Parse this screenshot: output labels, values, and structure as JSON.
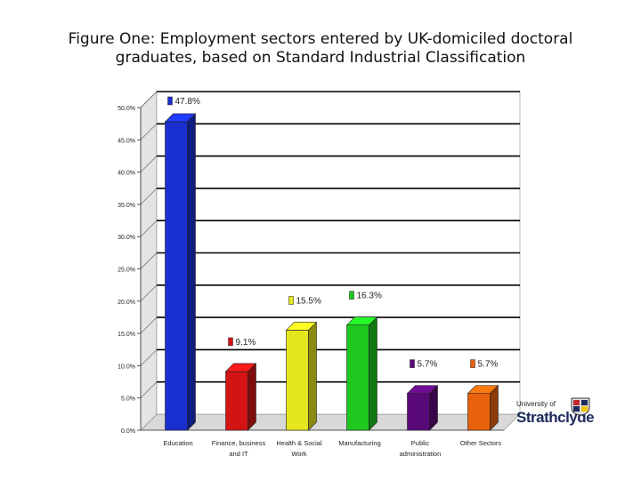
{
  "title": {
    "line1": "Figure One: Employment sectors entered by UK-domiciled doctoral",
    "line2": "graduates, based on Standard Industrial Classification"
  },
  "chart_data": {
    "type": "bar",
    "title": "Figure One: Employment sectors entered by UK-domiciled doctoral graduates, based on Standard Industrial Classification",
    "categories": [
      [
        "Education"
      ],
      [
        "Finance, business",
        "and IT"
      ],
      [
        "Health & Social",
        "Work"
      ],
      [
        "Manufacturing"
      ],
      [
        "Public",
        "administration"
      ],
      [
        "Other Sectors"
      ]
    ],
    "values": [
      47.8,
      9.1,
      15.5,
      16.3,
      5.7,
      5.7
    ],
    "data_labels": [
      "47.8%",
      "9.1%",
      "15.5%",
      "16.3%",
      "5.7%",
      "5.7%"
    ],
    "colors": [
      "#1a2fd0",
      "#d41414",
      "#e6e61e",
      "#1ec81e",
      "#5a0a78",
      "#e8620c"
    ],
    "ylim": [
      0,
      50
    ],
    "yticks": [
      "0.0%",
      "5.0%",
      "10.0%",
      "15.0%",
      "20.0%",
      "25.0%",
      "30.0%",
      "35.0%",
      "40.0%",
      "45.0%",
      "50.0%"
    ],
    "grid": true,
    "style": "3d-column"
  },
  "logo": {
    "line1": "University of",
    "line2": "Strathclyde"
  }
}
